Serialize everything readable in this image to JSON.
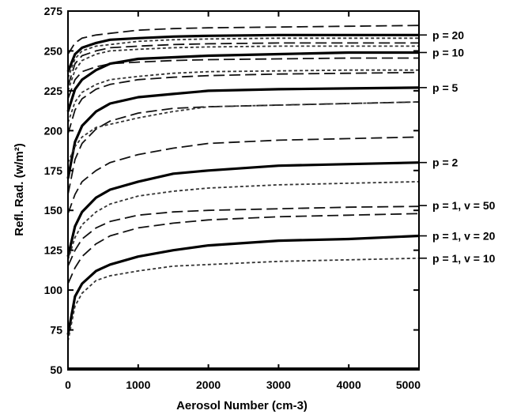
{
  "chart_data": {
    "type": "line",
    "xlabel": "Aerosol Number (cm-3)",
    "ylabel": "Refl. Rad. (w/m²)",
    "xlim": [
      0,
      5000
    ],
    "ylim": [
      50,
      275
    ],
    "x_ticks": [
      0,
      1000,
      2000,
      3000,
      4000,
      5000
    ],
    "y_ticks": [
      50,
      75,
      100,
      125,
      150,
      175,
      200,
      225,
      250,
      275
    ],
    "x_tick_labels": [
      "0",
      "1000",
      "2000",
      "3000",
      "4000",
      "5000"
    ],
    "y_tick_labels": [
      "50",
      "75",
      "100",
      "125",
      "150",
      "175",
      "200",
      "225",
      "250",
      "275"
    ],
    "grid": false,
    "legend": "inline labels on right",
    "curve_labels": [
      {
        "text": "p = 20",
        "y": 260
      },
      {
        "text": "p = 10",
        "y": 249
      },
      {
        "text": "p = 5",
        "y": 227
      },
      {
        "text": "p = 2",
        "y": 180
      },
      {
        "text": "p = 1, v = 50",
        "y": 153
      },
      {
        "text": "p = 1, v = 20",
        "y": 134
      },
      {
        "text": "p = 1, v = 10",
        "y": 120
      }
    ],
    "x": [
      0,
      100,
      200,
      400,
      600,
      1000,
      1500,
      2000,
      3000,
      4000,
      5000
    ],
    "series": [
      {
        "style": "dashed",
        "values": [
          248,
          255,
          258,
          260,
          261,
          263,
          264,
          264.5,
          265,
          265.5,
          266
        ]
      },
      {
        "style": "solid",
        "values": [
          237,
          248,
          252,
          255,
          257,
          258,
          259,
          259.5,
          260,
          260,
          260
        ]
      },
      {
        "style": "dotted",
        "values": [
          233,
          245,
          250,
          253,
          254,
          256,
          257,
          257.5,
          258,
          258,
          258
        ]
      },
      {
        "style": "dashed",
        "values": [
          228,
          242,
          247,
          250,
          252,
          253,
          254,
          254.5,
          255,
          255,
          255
        ]
      },
      {
        "style": "dotted",
        "values": [
          225,
          238,
          244,
          248,
          250,
          251,
          252,
          252.5,
          253,
          253,
          253
        ]
      },
      {
        "style": "dashed",
        "values": [
          220,
          232,
          237,
          240,
          242,
          243,
          244,
          244.5,
          245,
          245.5,
          245.5
        ]
      },
      {
        "style": "solid",
        "values": [
          212,
          226,
          232,
          238,
          242,
          245,
          246,
          247,
          248,
          249,
          249
        ]
      },
      {
        "style": "dotted",
        "values": [
          205,
          218,
          224,
          229,
          232,
          234,
          236,
          237,
          237.5,
          238,
          238
        ]
      },
      {
        "style": "dashed",
        "values": [
          198,
          213,
          220,
          226,
          229,
          232,
          233.5,
          234.5,
          235.5,
          236,
          236.5
        ]
      },
      {
        "style": "solid",
        "values": [
          170,
          193,
          203,
          212,
          217,
          221,
          223,
          225,
          226,
          226.5,
          227
        ]
      },
      {
        "style": "dashed",
        "values": [
          160,
          182,
          192,
          201,
          206,
          211,
          214,
          215,
          216,
          217,
          218
        ]
      },
      {
        "style": "dotted",
        "values": [
          180,
          190,
          196,
          202,
          204,
          208,
          212,
          215,
          216,
          217,
          218
        ]
      },
      {
        "style": "dashed",
        "values": [
          148,
          160,
          168,
          175,
          180,
          185,
          189,
          192,
          194,
          195,
          196
        ]
      },
      {
        "style": "solid",
        "values": [
          121,
          140,
          149,
          158,
          163,
          168,
          173,
          175,
          178,
          179,
          180
        ]
      },
      {
        "style": "dotted",
        "values": [
          119,
          133,
          141,
          149,
          154,
          159,
          162,
          164,
          166,
          167,
          168
        ]
      },
      {
        "style": "dashed",
        "values": [
          115,
          125,
          132,
          139,
          143,
          147,
          149,
          150,
          151,
          152,
          152.5
        ]
      },
      {
        "style": "dashed",
        "values": [
          104,
          114,
          121,
          129,
          134,
          139,
          142,
          144,
          146,
          147,
          148
        ]
      },
      {
        "style": "solid",
        "values": [
          72,
          96,
          104,
          112,
          116,
          121,
          125,
          128,
          131,
          132,
          134
        ]
      },
      {
        "style": "dotted",
        "values": [
          68,
          90,
          98,
          106,
          109,
          112,
          115,
          116,
          118,
          119,
          120
        ]
      }
    ]
  }
}
